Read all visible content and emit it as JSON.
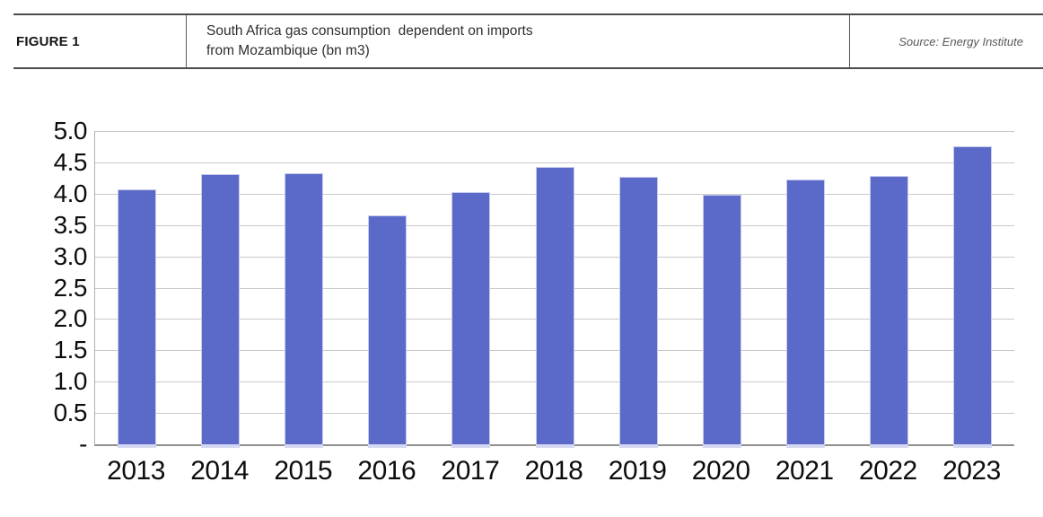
{
  "header": {
    "figure_label": "FIGURE 1",
    "title": "South Africa gas consumption  dependent on imports\nfrom Mozambique (bn m3)",
    "source": "Source: Energy Institute"
  },
  "colors": {
    "bar": "#5b6ac8",
    "gridline": "#c9c9c9",
    "axis_line": "#8f8f8f",
    "header_rule": "#4b4b4d",
    "source_text": "#57585c"
  },
  "chart_data": {
    "type": "bar",
    "title": "South Africa gas consumption  dependent on imports from Mozambique (bn m3)",
    "xlabel": "",
    "ylabel": "",
    "unit": "bn m3",
    "categories": [
      "2013",
      "2014",
      "2015",
      "2016",
      "2017",
      "2018",
      "2019",
      "2020",
      "2021",
      "2022",
      "2023"
    ],
    "values": [
      4.07,
      4.31,
      4.33,
      3.66,
      4.02,
      4.42,
      4.27,
      3.99,
      4.23,
      4.28,
      4.76
    ],
    "ylim": [
      0,
      5.0
    ],
    "y_tick_step": 0.5,
    "y_tick_labels": [
      "5.0",
      "4.5",
      "4.0",
      "3.5",
      "3.0",
      "2.5",
      "2.0",
      "1.5",
      "1.0",
      "0.5",
      "-"
    ],
    "grid": true,
    "legend": "none",
    "bar_color": "#5b6ac8"
  }
}
